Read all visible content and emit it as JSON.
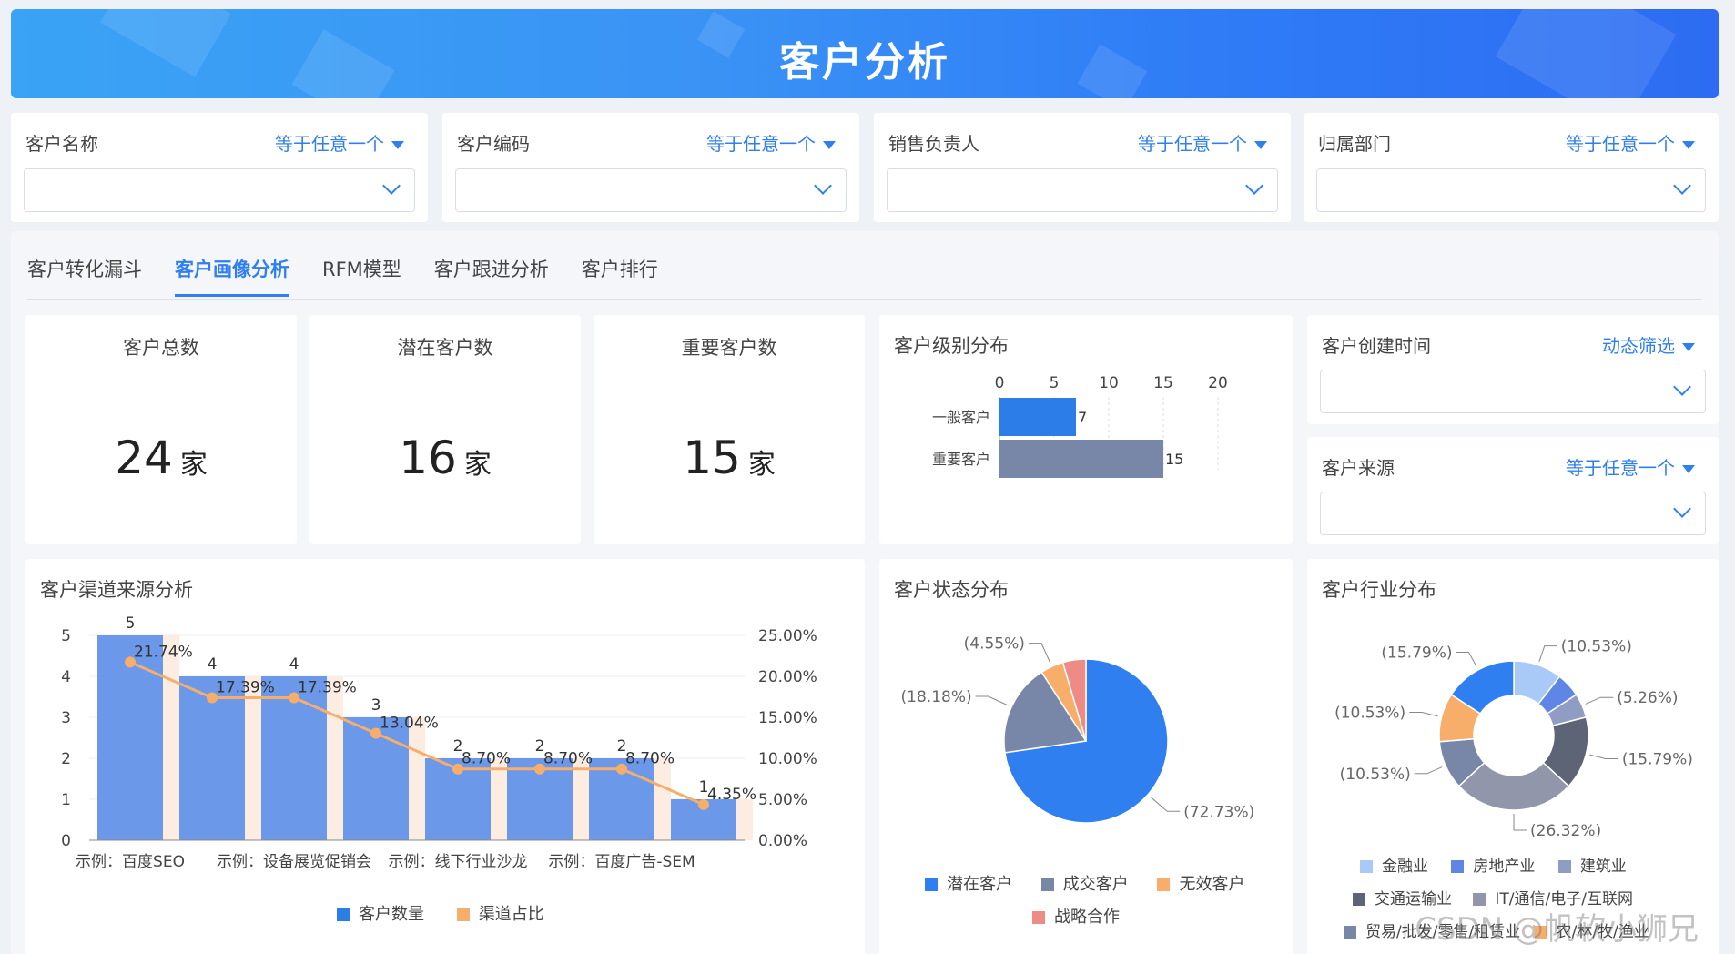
{
  "header": {
    "title": "客户分析"
  },
  "filters": [
    {
      "label": "客户名称",
      "mode": "等于任意一个"
    },
    {
      "label": "客户编码",
      "mode": "等于任意一个"
    },
    {
      "label": "销售负责人",
      "mode": "等于任意一个"
    },
    {
      "label": "归属部门",
      "mode": "等于任意一个"
    }
  ],
  "tabs": [
    "客户转化漏斗",
    "客户画像分析",
    "RFM模型",
    "客户跟进分析",
    "客户排行"
  ],
  "active_tab": "客户画像分析",
  "kpis": [
    {
      "title": "客户总数",
      "value": "24",
      "unit": "家"
    },
    {
      "title": "潜在客户数",
      "value": "16",
      "unit": "家"
    },
    {
      "title": "重要客户数",
      "value": "15",
      "unit": "家"
    }
  ],
  "side_filters": [
    {
      "label": "客户创建时间",
      "mode": "动态筛选"
    },
    {
      "label": "客户来源",
      "mode": "等于任意一个"
    }
  ],
  "colors": {
    "accent": "#2f7ff0",
    "bar_primary": "#2d7de8",
    "bar_secondary": "#7886a8",
    "line": "#f7ae6b"
  },
  "chart_data": [
    {
      "id": "level",
      "type": "bar",
      "title": "客户级别分布",
      "orientation": "horizontal",
      "categories": [
        "一般客户",
        "重要客户"
      ],
      "values": [
        7,
        15
      ],
      "xlim": [
        0,
        20
      ],
      "ticks": [
        0,
        5,
        10,
        15,
        20
      ],
      "colors": [
        "#2d7de8",
        "#7886a8"
      ]
    },
    {
      "id": "channel",
      "type": "bar",
      "title": "客户渠道来源分析",
      "categories": [
        "示例：百度SEO",
        "示例：设备展览促销会",
        "示例：线下行业沙龙",
        "示例：百度广告-SEM",
        "",
        "",
        "",
        ""
      ],
      "x_tick_labels": [
        "示例：百度SEO",
        "示例：设备展览促销会",
        "示例：线下行业沙龙",
        "示例：百度广告-SEM"
      ],
      "series": [
        {
          "name": "客户数量",
          "type": "bar",
          "values": [
            5,
            4,
            4,
            3,
            2,
            2,
            2,
            1
          ]
        },
        {
          "name": "渠道占比",
          "type": "line",
          "values": [
            21.74,
            17.39,
            17.39,
            13.04,
            8.7,
            8.7,
            8.7,
            4.35
          ],
          "labels": [
            "21.74%",
            "17.39%",
            "17.39%",
            "13.04%",
            "8.70%",
            "8.70%",
            "8.70%",
            "4.35%"
          ]
        }
      ],
      "ylim_left": [
        0,
        5
      ],
      "ylim_right": [
        0,
        25
      ],
      "right_ticks": [
        "0.00%",
        "5.00%",
        "10.00%",
        "15.00%",
        "20.00%",
        "25.00%"
      ],
      "legend": "bottom"
    },
    {
      "id": "status",
      "type": "pie",
      "title": "客户状态分布",
      "slices": [
        {
          "name": "潜在客户",
          "pct": 72.73,
          "label": "(72.73%)",
          "color": "#2f7ff0"
        },
        {
          "name": "成交客户",
          "pct": 18.18,
          "label": "(18.18%)",
          "color": "#7886a8"
        },
        {
          "name": "无效客户",
          "pct": 4.55,
          "label": "(4.55%)",
          "color": "#f7ae6b"
        },
        {
          "name": "战略合作",
          "pct": 4.55,
          "label": "",
          "color": "#ee8b85"
        }
      ],
      "legend": "bottom"
    },
    {
      "id": "industry",
      "type": "pie",
      "title": "客户行业分布",
      "donut": true,
      "slices": [
        {
          "name": "金融业",
          "pct": 10.53,
          "label": "(10.53%)",
          "color": "#a9caf7"
        },
        {
          "name": "房地产业",
          "pct": 5.26,
          "label": "",
          "color": "#5f86e6"
        },
        {
          "name": "建筑业",
          "pct": 5.26,
          "label": "(5.26%)",
          "color": "#8f9dc4"
        },
        {
          "name": "交通运输业",
          "pct": 15.79,
          "label": "(15.79%)",
          "color": "#5d6476"
        },
        {
          "name": "IT/通信/电子/互联网",
          "pct": 26.32,
          "label": "(26.32%)",
          "color": "#9196ab"
        },
        {
          "name": "贸易/批发/零售/租赁业",
          "pct": 10.53,
          "label": "(10.53%)",
          "color": "#7886a8"
        },
        {
          "name": "农/林/牧/渔业",
          "pct": 10.53,
          "label": "(10.53%)",
          "color": "#f7ae6b"
        },
        {
          "name": "",
          "pct": 15.79,
          "label": "(15.79%)",
          "color": "#2f7ff0"
        }
      ],
      "legend": "bottom"
    }
  ],
  "watermark": "CSDN @帆软小狮兄"
}
